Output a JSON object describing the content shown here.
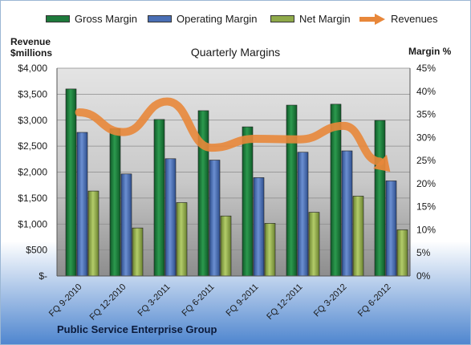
{
  "chart_data": {
    "type": "bar",
    "title": "Quarterly Margins",
    "footer": "Public Service Enterprise Group",
    "ylabel_left": [
      "Revenue",
      "$millions"
    ],
    "ylabel_right": "Margin %",
    "categories": [
      "FQ 9-2010",
      "FQ 12-2010",
      "FQ 3-2011",
      "FQ 6-2011",
      "FQ 9-2011",
      "FQ 12-2011",
      "FQ 3-2012",
      "FQ 6-2012"
    ],
    "left_ticks": [
      "$-",
      "$500",
      "$1,000",
      "$1,500",
      "$2,000",
      "$2,500",
      "$3,000",
      "$3,500",
      "$4,000"
    ],
    "right_ticks": [
      "0%",
      "5%",
      "10%",
      "15%",
      "20%",
      "25%",
      "30%",
      "35%",
      "40%",
      "45%"
    ],
    "ylim_left": [
      0,
      4000
    ],
    "ylim_right": [
      0,
      45
    ],
    "series": [
      {
        "name": "Gross Margin",
        "axis": "right",
        "color": "#1e7a3c",
        "values": [
          40.5,
          31.9,
          33.9,
          35.8,
          32.3,
          37.0,
          37.2,
          33.7
        ]
      },
      {
        "name": "Operating Margin",
        "axis": "right",
        "color": "#4a6fb5",
        "values": [
          31.1,
          22.1,
          25.4,
          25.1,
          21.3,
          26.8,
          27.1,
          20.6
        ]
      },
      {
        "name": "Net Margin",
        "axis": "right",
        "color": "#8faa4a",
        "values": [
          18.4,
          10.4,
          15.9,
          13.0,
          11.4,
          13.8,
          17.3,
          10.0
        ]
      },
      {
        "name": "Revenues",
        "axis": "left",
        "color": "#e8873a",
        "type": "line",
        "values": [
          3150,
          2770,
          3360,
          2470,
          2640,
          2630,
          2890,
          2050
        ]
      }
    ],
    "grid": true,
    "legend_position": "top"
  }
}
